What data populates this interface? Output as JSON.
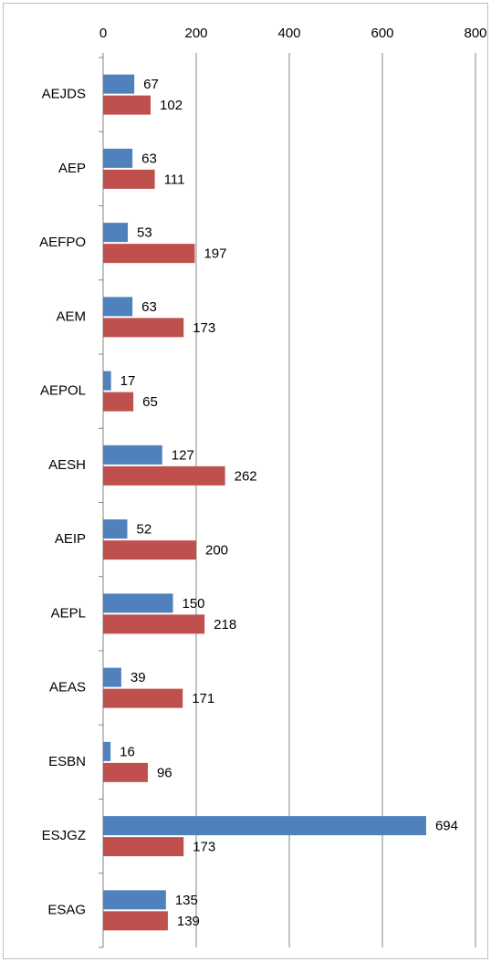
{
  "chart_data": {
    "type": "bar",
    "orientation": "horizontal",
    "categories": [
      "AEJDS",
      "AEP",
      "AEFPO",
      "AEM",
      "AEPOL",
      "AESH",
      "AEIP",
      "AEPL",
      "AEAS",
      "ESBN",
      "ESJGZ",
      "ESAG"
    ],
    "series": [
      {
        "color": "#4f81bd",
        "values": [
          67,
          63,
          53,
          63,
          17,
          127,
          52,
          150,
          39,
          16,
          694,
          135
        ]
      },
      {
        "color": "#c0504d",
        "values": [
          102,
          111,
          197,
          173,
          65,
          262,
          200,
          218,
          171,
          96,
          173,
          139
        ]
      }
    ],
    "xlim": [
      0,
      800
    ],
    "xticks": [
      0,
      200,
      400,
      600,
      800
    ],
    "grid": true
  }
}
